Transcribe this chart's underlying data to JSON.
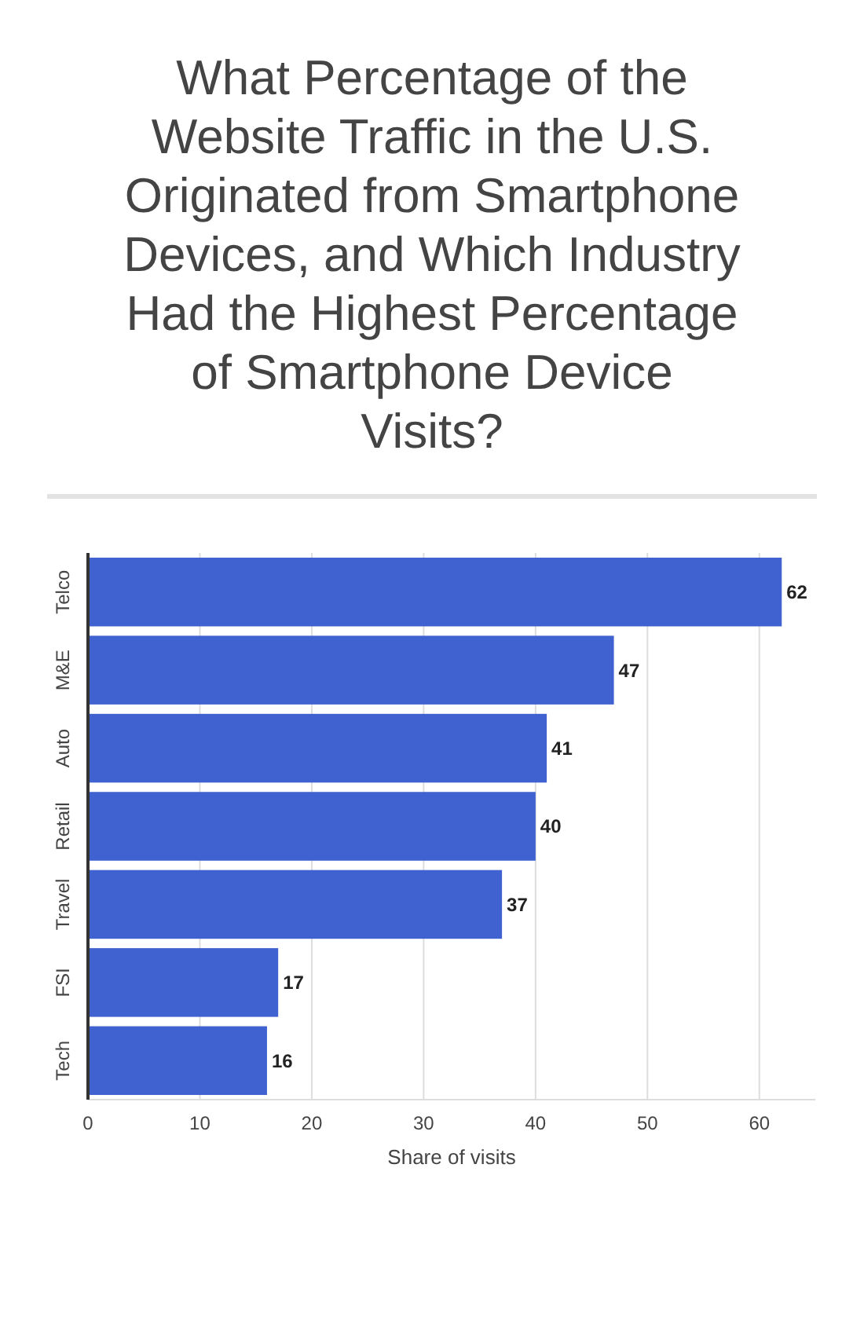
{
  "chart_data": {
    "type": "bar",
    "orientation": "horizontal",
    "title": "What Percentage of the Website Traffic in the U.S. Originated from Smartphone Devices, and Which Industry Had the Highest Percentage of Smartphone Device Visits?",
    "xlabel": "Share of visits",
    "categories": [
      "Telco",
      "M&E",
      "Auto",
      "Retail",
      "Travel",
      "FSI",
      "Tech"
    ],
    "values": [
      62,
      47,
      41,
      40,
      37,
      17,
      16
    ],
    "color": "#3f62d0",
    "xlim": [
      0,
      65
    ],
    "xticks": [
      0,
      10,
      20,
      30,
      40,
      50,
      60
    ],
    "grid": "x",
    "data_labels": true
  }
}
